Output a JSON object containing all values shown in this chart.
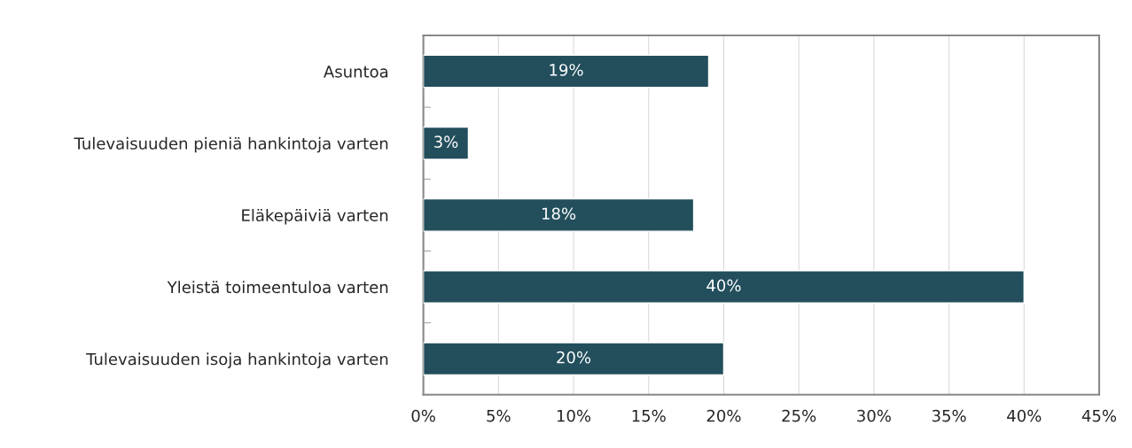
{
  "chart_data": {
    "type": "bar",
    "orientation": "horizontal",
    "categories": [
      "Asuntoa",
      "Tulevaisuuden pieniä hankintoja varten",
      "Eläkepäiviä varten",
      "Yleistä toimeentuloa varten",
      "Tulevaisuuden isoja hankintoja varten"
    ],
    "values": [
      19,
      3,
      18,
      40,
      20
    ],
    "value_labels": [
      "19%",
      "3%",
      "18%",
      "40%",
      "20%"
    ],
    "color": "#234e5c",
    "xlim": [
      0,
      45
    ],
    "xticks": [
      {
        "value": 0,
        "label": "0%"
      },
      {
        "value": 5,
        "label": "5%"
      },
      {
        "value": 10,
        "label": "10%"
      },
      {
        "value": 15,
        "label": "15%"
      },
      {
        "value": 20,
        "label": "20%"
      },
      {
        "value": 25,
        "label": "25%"
      },
      {
        "value": 30,
        "label": "30%"
      },
      {
        "value": 35,
        "label": "35%"
      },
      {
        "value": 40,
        "label": "40%"
      },
      {
        "value": 45,
        "label": "45%"
      }
    ],
    "grid": "x",
    "legend": false
  }
}
